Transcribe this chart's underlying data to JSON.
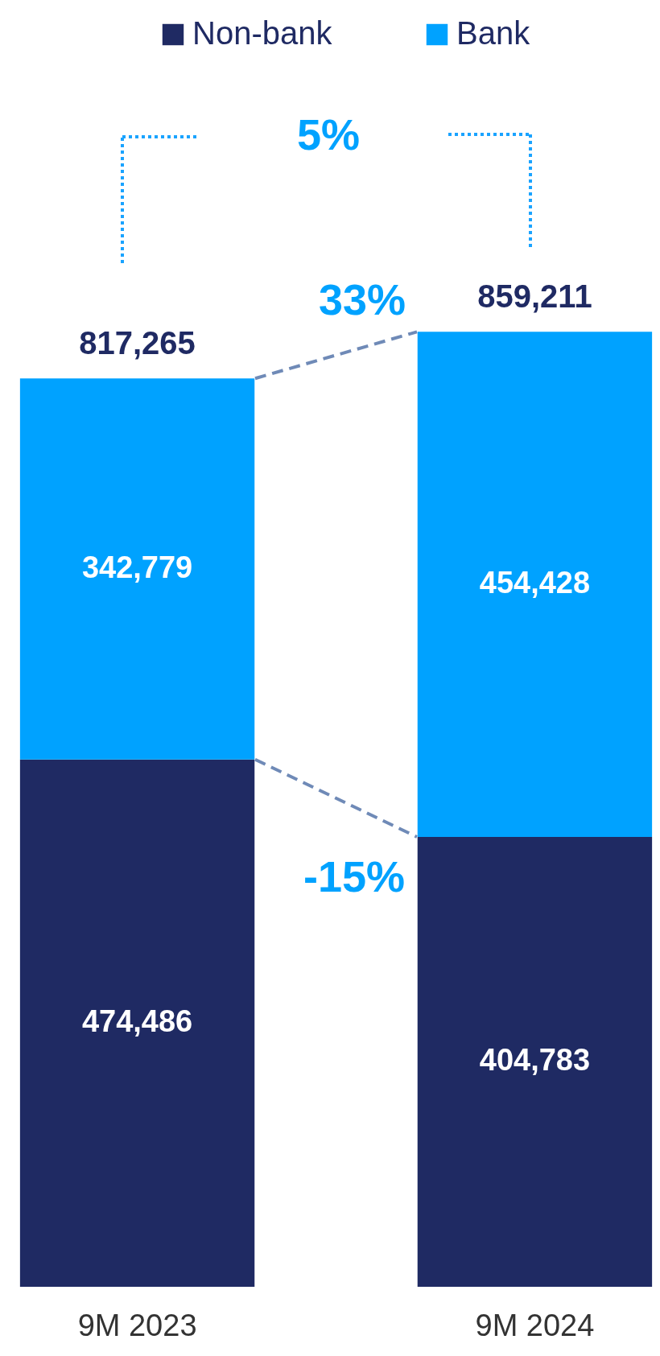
{
  "chart_data": {
    "type": "bar",
    "stacked": true,
    "categories": [
      "9M 2023",
      "9M 2024"
    ],
    "series": [
      {
        "name": "Non-bank",
        "color": "#1f2a63",
        "values": [
          474486,
          404783
        ],
        "value_labels": [
          "474,486",
          "404,783"
        ]
      },
      {
        "name": "Bank",
        "color": "#00a2ff",
        "values": [
          342779,
          454428
        ],
        "value_labels": [
          "342,779",
          "454,428"
        ]
      }
    ],
    "totals": [
      "817,265",
      "859,211"
    ],
    "legend": "top",
    "annotations": [
      "5%",
      "33%",
      "-15%"
    ]
  }
}
